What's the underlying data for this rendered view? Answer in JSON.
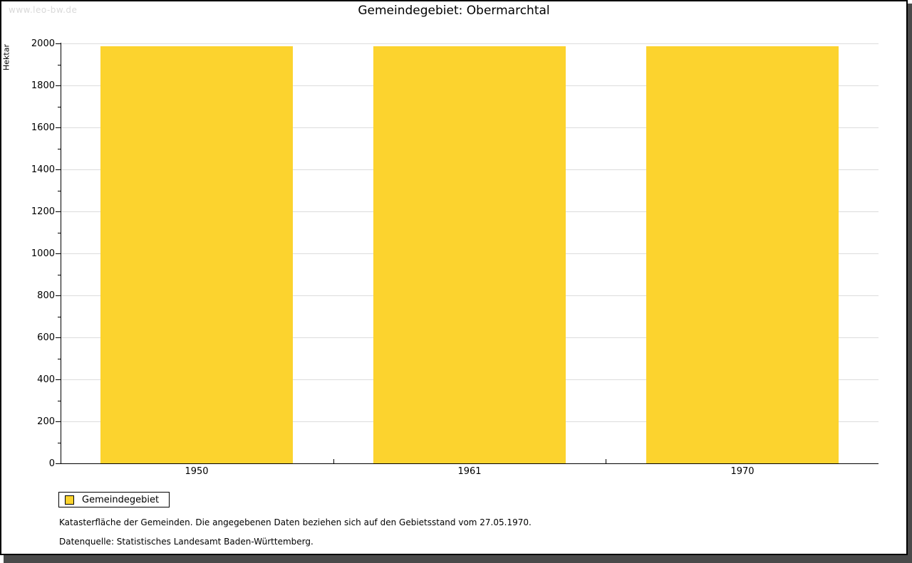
{
  "watermark": "www.leo-bw.de",
  "header": {
    "title": "Gemeindegebiet: Obermarchtal"
  },
  "legend": {
    "label": "Gemeindegebiet"
  },
  "footnotes": {
    "line1": "Katasterfläche der Gemeinden. Die angegebenen Daten beziehen sich auf den Gebietsstand vom 27.05.1970.",
    "line2": "Datenquelle: Statistisches Landesamt Baden-Württemberg."
  },
  "colors": {
    "bar": "#fcd32e",
    "grid": "#dcdcdc",
    "axis": "#000000",
    "watermark": "#d9d9d9",
    "window_shadow": "#4a4a4a"
  },
  "chart_data": {
    "type": "bar",
    "title": "Gemeindegebiet: Obermarchtal",
    "categories": [
      "1950",
      "1961",
      "1970"
    ],
    "series": [
      {
        "name": "Gemeindegebiet",
        "values": [
          1985,
          1985,
          1985
        ],
        "color": "#fcd32e"
      }
    ],
    "xlabel": "",
    "ylabel": "Hektar",
    "ylim": [
      0,
      2000
    ],
    "ytick_step": 200,
    "ytick_minor_step": 100,
    "grid": "horizontal-major",
    "legend_position": "bottom-left"
  }
}
